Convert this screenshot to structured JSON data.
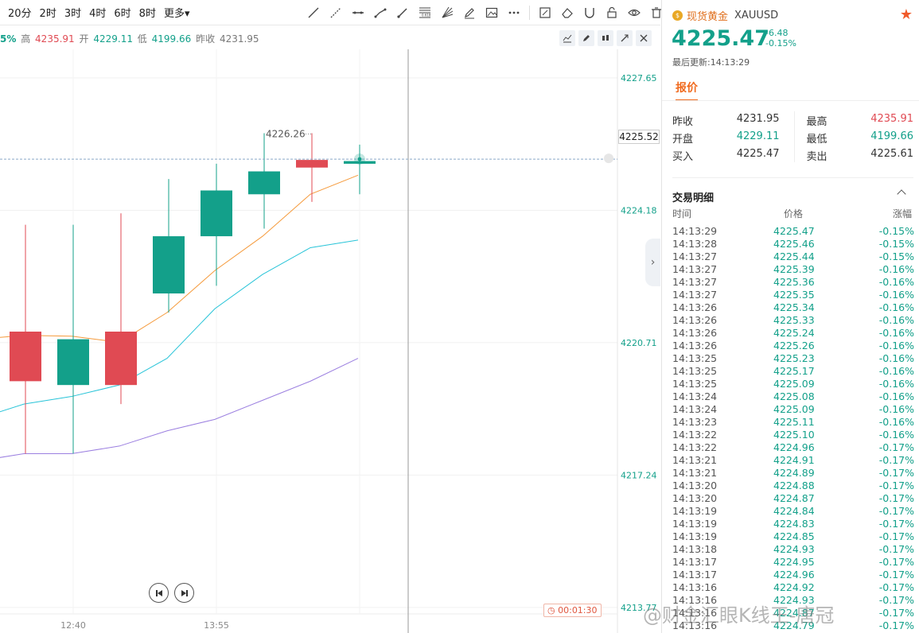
{
  "toolbar": {
    "timeframes": [
      "20分",
      "2时",
      "3时",
      "4时",
      "6时",
      "8时",
      "更多▾"
    ],
    "tools": [
      "trend-line-icon",
      "ray-icon",
      "horizontal-line-icon",
      "segment-icon",
      "arrow-icon",
      "fibonacci-icon",
      "fan-icon",
      "pencil-icon",
      "image-icon",
      "more-icon",
      "note-icon",
      "eraser-icon",
      "magnet-icon",
      "lock-icon",
      "eye-icon",
      "trash-icon"
    ]
  },
  "ohlc": {
    "pct": "5%",
    "high_label": "高",
    "high": "4235.91",
    "open_label": "开",
    "open": "4229.11",
    "low_label": "低",
    "low": "4199.66",
    "prev_label": "昨收",
    "prev": "4231.95"
  },
  "chart_data": {
    "type": "candlestick",
    "y_ticks": [
      "4227.65",
      "4224.18",
      "4220.71",
      "4217.24",
      "4213.77"
    ],
    "ylim": [
      4213.6,
      4228.4
    ],
    "x_ticks": [
      "12:40",
      "13:55"
    ],
    "current_price": "4225.52",
    "annotation": "4226.26",
    "candles": [
      {
        "o": 4221.0,
        "c": 4219.7,
        "h": 4223.8,
        "l": 4217.8
      },
      {
        "o": 4219.6,
        "c": 4220.8,
        "h": 4223.8,
        "l": 4217.8
      },
      {
        "o": 4221.0,
        "c": 4219.6,
        "h": 4224.1,
        "l": 4219.1
      },
      {
        "o": 4222.0,
        "c": 4223.5,
        "h": 4225.0,
        "l": 4221.5
      },
      {
        "o": 4223.5,
        "c": 4224.7,
        "h": 4225.4,
        "l": 4222.2
      },
      {
        "o": 4224.6,
        "c": 4225.2,
        "h": 4226.2,
        "l": 4223.7
      },
      {
        "o": 4225.5,
        "c": 4225.3,
        "h": 4226.2,
        "l": 4224.4
      },
      {
        "o": 4225.4,
        "c": 4225.47,
        "h": 4225.9,
        "l": 4224.6
      }
    ],
    "ma_orange": [
      4220.8,
      4220.9,
      4220.88,
      4220.72,
      4221.5,
      4222.6,
      4223.5,
      4224.6,
      4225.1
    ],
    "ma_cyan": [
      4218.7,
      4219.1,
      4219.3,
      4219.6,
      4220.3,
      4221.6,
      4222.5,
      4223.2,
      4223.4
    ],
    "ma_purple": [
      4217.6,
      4217.8,
      4217.8,
      4218.0,
      4218.4,
      4218.7,
      4219.2,
      4219.7,
      4220.3
    ],
    "colors": {
      "up": "#13a08a",
      "down": "#e04a53",
      "ma_orange": "#f59a3b",
      "ma_cyan": "#28c4d8",
      "ma_purple": "#9b7fe0"
    }
  },
  "timer": "00:01:30",
  "panel": {
    "symbol_name": "现货黄金",
    "symbol_code": "XAUUSD",
    "price": "4225.47",
    "change": "-6.48",
    "change_pct": "-0.15%",
    "updated": "最后更新:14:13:29",
    "tab": "报价",
    "quote": [
      {
        "l_label": "昨收",
        "l_val": "4231.95",
        "r_label": "最高",
        "r_val": "4235.91"
      },
      {
        "l_label": "开盘",
        "l_val": "4229.11",
        "r_label": "最低",
        "r_val": "4199.66"
      },
      {
        "l_label": "买入",
        "l_val": "4225.47",
        "r_label": "卖出",
        "r_val": "4225.61"
      }
    ],
    "trade_title": "交易明细",
    "headers": {
      "time": "时间",
      "price": "价格",
      "change": "涨幅"
    },
    "trades": [
      [
        "14:13:29",
        "4225.47",
        "-0.15%"
      ],
      [
        "14:13:28",
        "4225.46",
        "-0.15%"
      ],
      [
        "14:13:27",
        "4225.44",
        "-0.15%"
      ],
      [
        "14:13:27",
        "4225.39",
        "-0.16%"
      ],
      [
        "14:13:27",
        "4225.36",
        "-0.16%"
      ],
      [
        "14:13:27",
        "4225.35",
        "-0.16%"
      ],
      [
        "14:13:26",
        "4225.34",
        "-0.16%"
      ],
      [
        "14:13:26",
        "4225.33",
        "-0.16%"
      ],
      [
        "14:13:26",
        "4225.24",
        "-0.16%"
      ],
      [
        "14:13:26",
        "4225.26",
        "-0.16%"
      ],
      [
        "14:13:25",
        "4225.23",
        "-0.16%"
      ],
      [
        "14:13:25",
        "4225.17",
        "-0.16%"
      ],
      [
        "14:13:25",
        "4225.09",
        "-0.16%"
      ],
      [
        "14:13:24",
        "4225.08",
        "-0.16%"
      ],
      [
        "14:13:24",
        "4225.09",
        "-0.16%"
      ],
      [
        "14:13:23",
        "4225.11",
        "-0.16%"
      ],
      [
        "14:13:22",
        "4225.10",
        "-0.16%"
      ],
      [
        "14:13:22",
        "4224.96",
        "-0.17%"
      ],
      [
        "14:13:21",
        "4224.91",
        "-0.17%"
      ],
      [
        "14:13:21",
        "4224.89",
        "-0.17%"
      ],
      [
        "14:13:20",
        "4224.88",
        "-0.17%"
      ],
      [
        "14:13:20",
        "4224.87",
        "-0.17%"
      ],
      [
        "14:13:19",
        "4224.84",
        "-0.17%"
      ],
      [
        "14:13:19",
        "4224.83",
        "-0.17%"
      ],
      [
        "14:13:19",
        "4224.85",
        "-0.17%"
      ],
      [
        "14:13:18",
        "4224.93",
        "-0.17%"
      ],
      [
        "14:13:17",
        "4224.95",
        "-0.17%"
      ],
      [
        "14:13:17",
        "4224.96",
        "-0.17%"
      ],
      [
        "14:13:16",
        "4224.92",
        "-0.17%"
      ],
      [
        "14:13:16",
        "4224.93",
        "-0.17%"
      ],
      [
        "14:13:16",
        "4224.87",
        "-0.17%"
      ],
      [
        "14:13:16",
        "4224.79",
        "-0.17%"
      ]
    ]
  },
  "watermark": "@财金汇眼K线王-唐冠"
}
